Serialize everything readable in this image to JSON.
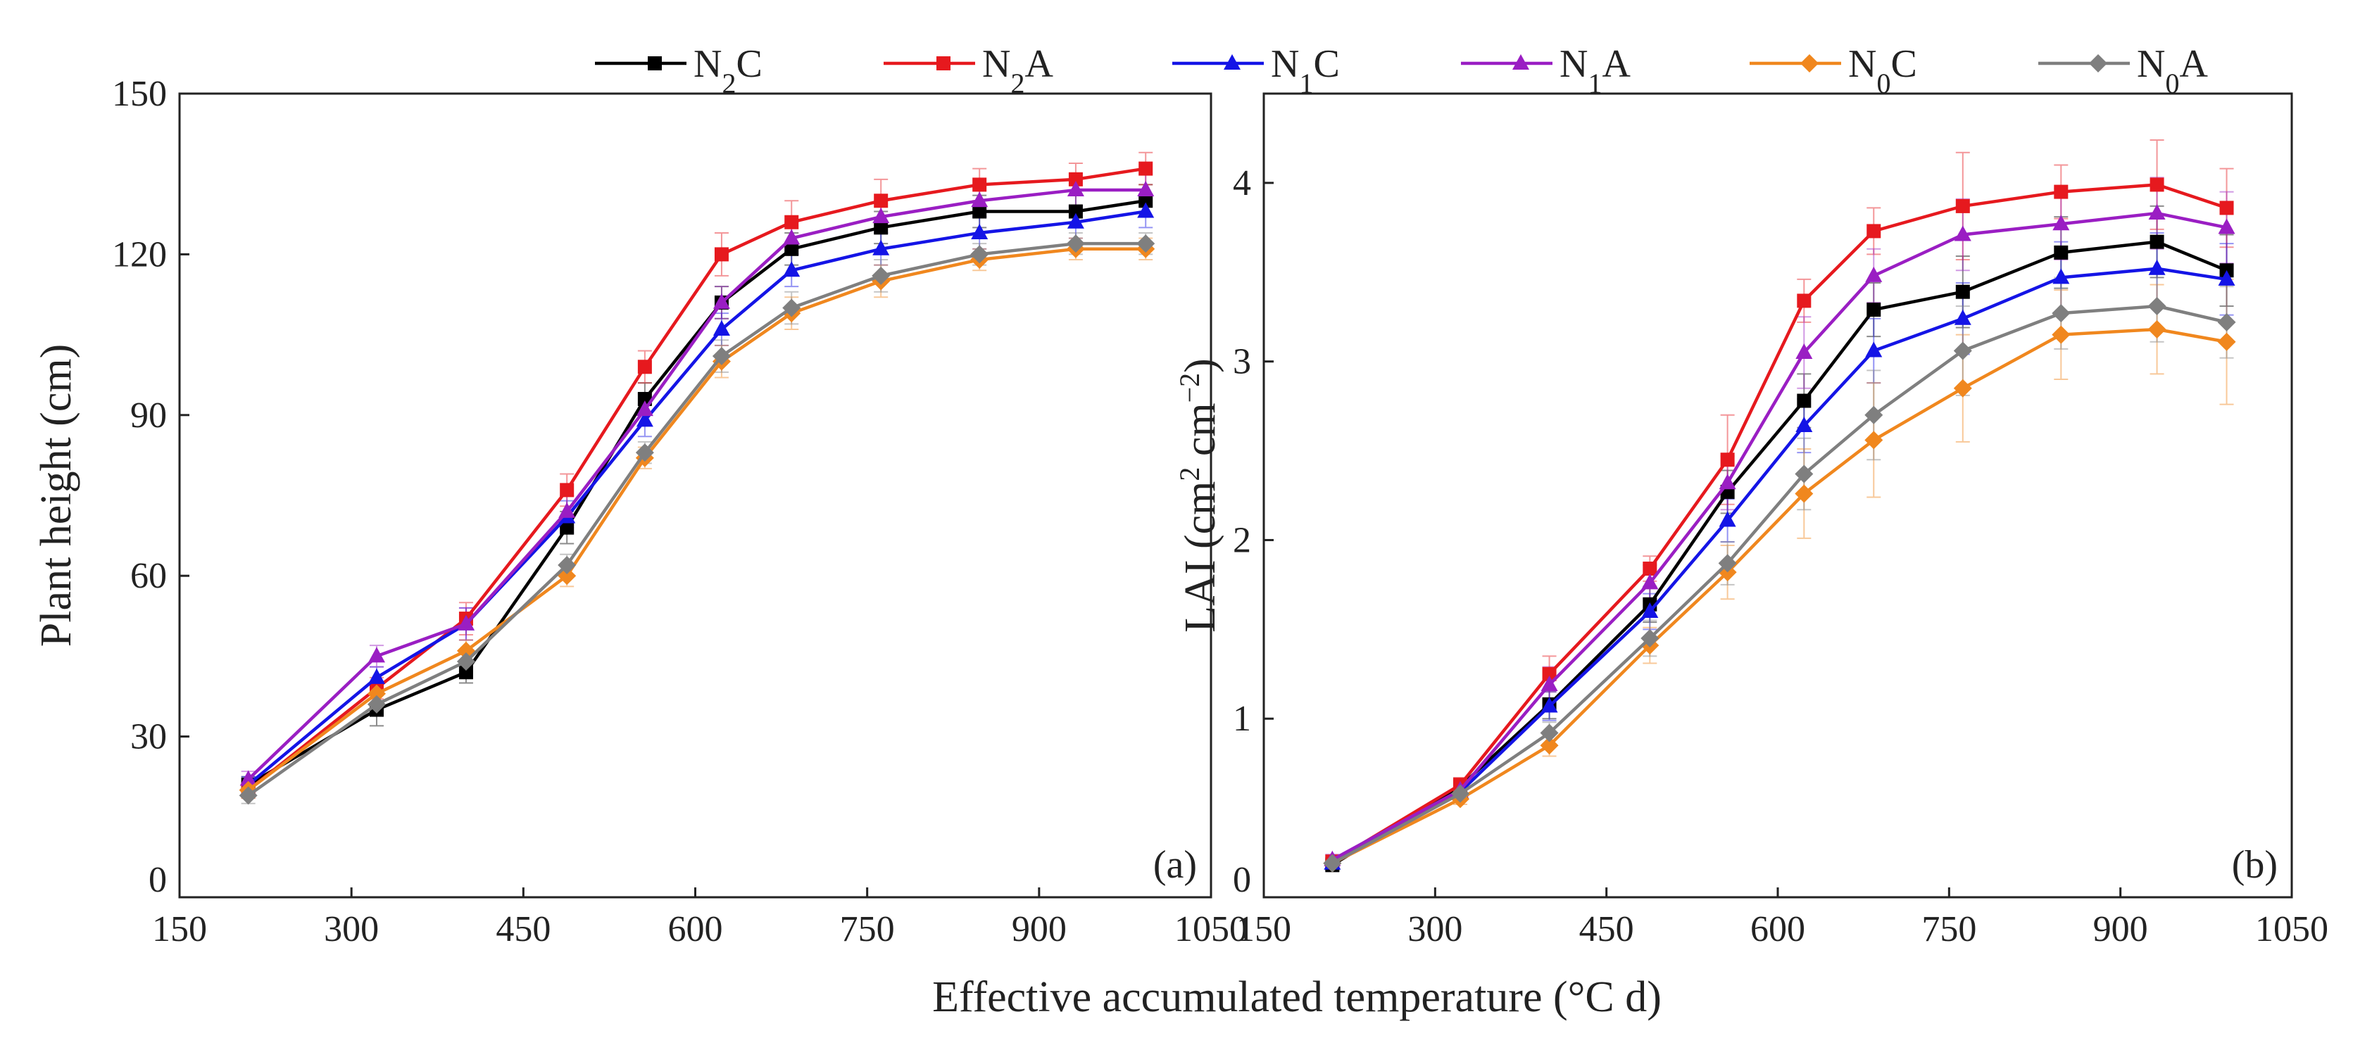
{
  "chart_data": {
    "type": "line",
    "xlabel": "Effective accumulated temperature (°C d)",
    "legend": {
      "placement": "top-center",
      "entries": [
        {
          "base": "N",
          "sub": "2",
          "tail": "C",
          "color": "#000000",
          "marker": "square"
        },
        {
          "base": "N",
          "sub": "2",
          "tail": "A",
          "color": "#e6191e",
          "marker": "square"
        },
        {
          "base": "N",
          "sub": "1",
          "tail": "C",
          "color": "#1414e6",
          "marker": "triangle"
        },
        {
          "base": "N",
          "sub": "1",
          "tail": "A",
          "color": "#9a1ec3",
          "marker": "triangle"
        },
        {
          "base": "N",
          "sub": "0",
          "tail": "C",
          "color": "#f0871e",
          "marker": "diamond"
        },
        {
          "base": "N",
          "sub": "0",
          "tail": "A",
          "color": "#7f7f7f",
          "marker": "diamond"
        }
      ]
    },
    "x": [
      210,
      322,
      400,
      488,
      556,
      623,
      684,
      762,
      848,
      932,
      993
    ],
    "panels": [
      {
        "label": "(a)",
        "ylabel": "Plant height (cm)",
        "xlim": [
          150,
          1050
        ],
        "ylim": [
          0,
          150
        ],
        "xticks": [
          150,
          300,
          450,
          600,
          750,
          900,
          1050
        ],
        "yticks": [
          0,
          30,
          60,
          90,
          120,
          150
        ],
        "ytick_labels": [
          "0",
          "30",
          "60",
          "90",
          "120",
          "150"
        ],
        "series": [
          {
            "name": "N2C",
            "values": [
              21,
              35,
              42,
              69,
              93,
              111,
              121,
              125,
              128,
              128,
              130
            ],
            "errors": [
              1.5,
              3,
              2,
              3,
              3,
              3,
              3,
              3,
              3,
              3,
              3
            ]
          },
          {
            "name": "N2A",
            "values": [
              20,
              39,
              52,
              76,
              99,
              120,
              126,
              130,
              133,
              134,
              136
            ],
            "errors": [
              1.5,
              2,
              3,
              3,
              3,
              4,
              4,
              4,
              3,
              3,
              3
            ]
          },
          {
            "name": "N1C",
            "values": [
              21,
              41,
              51,
              71,
              89,
              106,
              117,
              121,
              124,
              126,
              128
            ],
            "errors": [
              1.5,
              2,
              3,
              3,
              3,
              3,
              3,
              3,
              3,
              3,
              3
            ]
          },
          {
            "name": "N1A",
            "values": [
              22,
              45,
              51,
              72,
              91,
              111,
              123,
              127,
              130,
              132,
              132
            ],
            "errors": [
              1.5,
              2,
              3,
              3,
              3,
              3,
              3,
              3,
              3,
              3,
              3
            ]
          },
          {
            "name": "N0C",
            "values": [
              20,
              38,
              46,
              60,
              82,
              100,
              109,
              115,
              119,
              121,
              121
            ],
            "errors": [
              1.5,
              2,
              2,
              2,
              2,
              3,
              3,
              3,
              2,
              2,
              2
            ]
          },
          {
            "name": "N0A",
            "values": [
              19,
              36,
              44,
              62,
              83,
              101,
              110,
              116,
              120,
              122,
              122
            ],
            "errors": [
              1.5,
              2,
              2,
              2,
              2,
              3,
              3,
              3,
              2,
              2,
              2
            ]
          }
        ]
      },
      {
        "label": "(b)",
        "ylabel": "LAI (cm2 cm−2)",
        "ylabel_parts": [
          "LAI (cm",
          "2",
          " cm",
          "−2",
          ")"
        ],
        "xlim": [
          150,
          1050
        ],
        "ylim": [
          0,
          4.5
        ],
        "xticks": [
          150,
          300,
          450,
          600,
          750,
          900,
          1050
        ],
        "yticks": [
          0,
          1,
          2,
          3,
          4
        ],
        "ytick_labels": [
          "0",
          "1",
          "2",
          "3",
          "4"
        ],
        "series": [
          {
            "name": "N2C",
            "values": [
              0.18,
              0.62,
              1.08,
              1.64,
              2.27,
              2.78,
              3.29,
              3.39,
              3.61,
              3.67,
              3.51
            ],
            "errors": [
              0.03,
              0.03,
              0.08,
              0.1,
              0.12,
              0.15,
              0.15,
              0.2,
              0.2,
              0.2,
              0.2
            ]
          },
          {
            "name": "N2A",
            "values": [
              0.2,
              0.63,
              1.25,
              1.84,
              2.45,
              3.34,
              3.73,
              3.87,
              3.95,
              3.99,
              3.86
            ],
            "errors": [
              0.03,
              0.04,
              0.1,
              0.07,
              0.25,
              0.12,
              0.13,
              0.3,
              0.15,
              0.25,
              0.22
            ]
          },
          {
            "name": "N1C",
            "values": [
              0.19,
              0.59,
              1.07,
              1.6,
              2.11,
              2.64,
              3.06,
              3.24,
              3.47,
              3.52,
              3.46
            ],
            "errors": [
              0.03,
              0.03,
              0.08,
              0.1,
              0.12,
              0.15,
              0.18,
              0.2,
              0.2,
              0.2,
              0.2
            ]
          },
          {
            "name": "N1A",
            "values": [
              0.21,
              0.6,
              1.19,
              1.76,
              2.32,
              3.05,
              3.48,
              3.71,
              3.77,
              3.83,
              3.75
            ],
            "errors": [
              0.03,
              0.03,
              0.1,
              0.1,
              0.15,
              0.2,
              0.15,
              0.2,
              0.2,
              0.2,
              0.2
            ]
          },
          {
            "name": "N0C",
            "values": [
              0.19,
              0.55,
              0.85,
              1.41,
              1.82,
              2.26,
              2.56,
              2.85,
              3.15,
              3.18,
              3.11
            ],
            "errors": [
              0.03,
              0.03,
              0.06,
              0.1,
              0.15,
              0.25,
              0.32,
              0.3,
              0.25,
              0.25,
              0.35
            ]
          },
          {
            "name": "N0A",
            "values": [
              0.19,
              0.58,
              0.92,
              1.45,
              1.87,
              2.37,
              2.7,
              3.06,
              3.27,
              3.31,
              3.22
            ],
            "errors": [
              0.03,
              0.03,
              0.06,
              0.1,
              0.12,
              0.2,
              0.25,
              0.25,
              0.2,
              0.2,
              0.2
            ]
          }
        ]
      }
    ]
  }
}
